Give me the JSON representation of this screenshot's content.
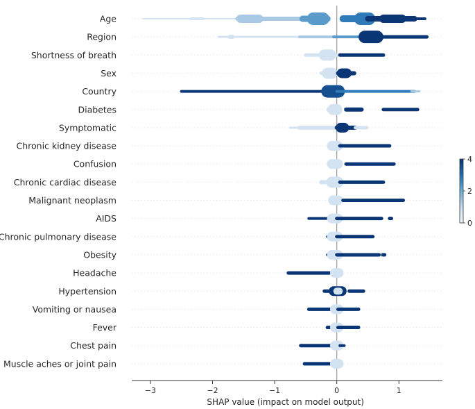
{
  "chart_data": {
    "type": "scatter",
    "subtype": "shap-beeswarm",
    "title": "",
    "xlabel": "SHAP value (impact on model output)",
    "ylabel": "",
    "xlim": [
      -3.3,
      1.7
    ],
    "x_ticks": [
      -3,
      -2,
      -1,
      0,
      1
    ],
    "x_tick_labels": [
      "−3",
      "−2",
      "−1",
      "0",
      "1"
    ],
    "grid": false,
    "colors": {
      "very_light": "#d3e3f1",
      "light": "#a9c9e4",
      "mid": "#5b9bcb",
      "midblue": "#2f7ab9",
      "dark": "#144f8f",
      "darkest": "#0b3675",
      "zero_line": "#999999",
      "axis": "#333333",
      "feature_guide": "#e6e6e6"
    },
    "colorbar": {
      "ticks": [
        0,
        2,
        4
      ],
      "tick_labels": [
        "0",
        "2",
        "4"
      ],
      "range": [
        0,
        4
      ],
      "colors": [
        "#f7fbff",
        "#c6dbef",
        "#6baed6",
        "#2171b5",
        "#08306b"
      ]
    },
    "features": [
      {
        "name": "Age",
        "segments": [
          {
            "x0": -3.12,
            "x1": -1.6,
            "w": 2,
            "c": "very_light"
          },
          {
            "x0": -2.35,
            "x1": -2.15,
            "w": 4,
            "c": "very_light"
          },
          {
            "x0": -1.6,
            "x1": -0.55,
            "w": 6,
            "c": "light"
          },
          {
            "x0": -1.55,
            "x1": -1.25,
            "w": 12,
            "c": "light"
          },
          {
            "x0": -0.55,
            "x1": -0.15,
            "w": 9,
            "c": "mid"
          },
          {
            "x0": -0.38,
            "x1": -0.22,
            "w": 18,
            "c": "mid"
          },
          {
            "x0": 0.1,
            "x1": 0.4,
            "w": 10,
            "c": "midblue"
          },
          {
            "x0": 0.38,
            "x1": 0.52,
            "w": 18,
            "c": "midblue"
          },
          {
            "x0": 0.5,
            "x1": 1.25,
            "w": 8,
            "c": "darkest"
          },
          {
            "x0": 0.75,
            "x1": 1.05,
            "w": 12,
            "c": "darkest"
          },
          {
            "x0": 1.25,
            "x1": 1.42,
            "w": 4,
            "c": "darkest"
          }
        ]
      },
      {
        "name": "Region",
        "segments": [
          {
            "x0": -1.9,
            "x1": -0.6,
            "w": 3,
            "c": "very_light"
          },
          {
            "x0": -1.72,
            "x1": -1.68,
            "w": 6,
            "c": "very_light"
          },
          {
            "x0": -0.6,
            "x1": 0.0,
            "w": 4,
            "c": "light"
          },
          {
            "x0": -0.05,
            "x1": 0.5,
            "w": 4,
            "c": "mid"
          },
          {
            "x0": 0.45,
            "x1": 0.65,
            "w": 18,
            "c": "darkest"
          },
          {
            "x0": 0.6,
            "x1": 1.45,
            "w": 5,
            "c": "darkest"
          }
        ]
      },
      {
        "name": "Shortness of breath",
        "segments": [
          {
            "x0": -0.5,
            "x1": 0.0,
            "w": 5,
            "c": "very_light"
          },
          {
            "x0": -0.2,
            "x1": -0.1,
            "w": 16,
            "c": "very_light"
          },
          {
            "x0": 0.05,
            "x1": 0.75,
            "w": 5,
            "c": "darkest"
          }
        ]
      },
      {
        "name": "Sex",
        "segments": [
          {
            "x0": -0.25,
            "x1": 0.0,
            "w": 5,
            "c": "very_light"
          },
          {
            "x0": -0.15,
            "x1": -0.08,
            "w": 16,
            "c": "very_light"
          },
          {
            "x0": 0.02,
            "x1": 0.28,
            "w": 6,
            "c": "darkest"
          },
          {
            "x0": 0.08,
            "x1": 0.16,
            "w": 14,
            "c": "darkest"
          }
        ]
      },
      {
        "name": "Country",
        "segments": [
          {
            "x0": -2.5,
            "x1": -0.15,
            "w": 4,
            "c": "darkest"
          },
          {
            "x0": -0.15,
            "x1": 0.03,
            "w": 18,
            "c": "dark"
          },
          {
            "x0": 0.0,
            "x1": 1.25,
            "w": 4,
            "c": "midblue"
          },
          {
            "x0": 1.2,
            "x1": 1.33,
            "w": 3,
            "c": "light"
          }
        ]
      },
      {
        "name": "Diabetes",
        "segments": [
          {
            "x0": -0.12,
            "x1": 0.02,
            "w": 8,
            "c": "very_light"
          },
          {
            "x0": -0.06,
            "x1": 0.0,
            "w": 16,
            "c": "very_light"
          },
          {
            "x0": 0.15,
            "x1": 0.4,
            "w": 6,
            "c": "darkest"
          },
          {
            "x0": 0.75,
            "x1": 1.3,
            "w": 5,
            "c": "darkest"
          }
        ]
      },
      {
        "name": "Symptomatic",
        "segments": [
          {
            "x0": -0.75,
            "x1": -0.5,
            "w": 3,
            "c": "very_light"
          },
          {
            "x0": -0.6,
            "x1": 0.0,
            "w": 6,
            "c": "very_light"
          },
          {
            "x0": 0.0,
            "x1": 0.3,
            "w": 6,
            "c": "darkest"
          },
          {
            "x0": 0.06,
            "x1": 0.12,
            "w": 14,
            "c": "darkest"
          },
          {
            "x0": 0.3,
            "x1": 0.48,
            "w": 5,
            "c": "very_light"
          }
        ]
      },
      {
        "name": "Chronic kidney disease",
        "segments": [
          {
            "x0": -0.08,
            "x1": 0.02,
            "w": 14,
            "c": "very_light"
          },
          {
            "x0": 0.05,
            "x1": 0.85,
            "w": 5,
            "c": "darkest"
          }
        ]
      },
      {
        "name": "Confusion",
        "segments": [
          {
            "x0": -0.08,
            "x1": 0.02,
            "w": 14,
            "c": "very_light"
          },
          {
            "x0": 0.15,
            "x1": 0.92,
            "w": 5,
            "c": "darkest"
          }
        ]
      },
      {
        "name": "Chronic cardiac disease",
        "segments": [
          {
            "x0": -0.25,
            "x1": 0.02,
            "w": 6,
            "c": "very_light"
          },
          {
            "x0": -0.08,
            "x1": 0.02,
            "w": 16,
            "c": "very_light"
          },
          {
            "x0": 0.05,
            "x1": 0.75,
            "w": 5,
            "c": "darkest"
          }
        ]
      },
      {
        "name": "Malignant neoplasm",
        "segments": [
          {
            "x0": -0.06,
            "x1": 0.02,
            "w": 14,
            "c": "very_light"
          },
          {
            "x0": 0.1,
            "x1": 1.07,
            "w": 5,
            "c": "darkest"
          }
        ]
      },
      {
        "name": "AIDS",
        "segments": [
          {
            "x0": -0.45,
            "x1": -0.05,
            "w": 4,
            "c": "darkest"
          },
          {
            "x0": -0.08,
            "x1": 0.02,
            "w": 14,
            "c": "very_light"
          },
          {
            "x0": 0.0,
            "x1": 0.72,
            "w": 5,
            "c": "darkest"
          },
          {
            "x0": 0.85,
            "x1": 0.88,
            "w": 5,
            "c": "darkest"
          }
        ]
      },
      {
        "name": "Chronic pulmonary disease",
        "segments": [
          {
            "x0": -0.15,
            "x1": -0.05,
            "w": 4,
            "c": "darkest"
          },
          {
            "x0": -0.08,
            "x1": 0.02,
            "w": 14,
            "c": "very_light"
          },
          {
            "x0": 0.0,
            "x1": 0.58,
            "w": 5,
            "c": "darkest"
          }
        ]
      },
      {
        "name": "Obesity",
        "segments": [
          {
            "x0": -0.15,
            "x1": -0.05,
            "w": 4,
            "c": "darkest"
          },
          {
            "x0": -0.08,
            "x1": 0.02,
            "w": 14,
            "c": "very_light"
          },
          {
            "x0": 0.0,
            "x1": 0.68,
            "w": 5,
            "c": "darkest"
          },
          {
            "x0": 0.74,
            "x1": 0.77,
            "w": 5,
            "c": "darkest"
          }
        ]
      },
      {
        "name": "Headache",
        "segments": [
          {
            "x0": -0.78,
            "x1": -0.12,
            "w": 5,
            "c": "darkest"
          },
          {
            "x0": -0.03,
            "x1": 0.03,
            "w": 14,
            "c": "very_light"
          }
        ]
      },
      {
        "name": "Hypertension",
        "segments": [
          {
            "x0": -0.2,
            "x1": 0.02,
            "w": 5,
            "c": "darkest"
          },
          {
            "x0": -0.05,
            "x1": 0.08,
            "w": 14,
            "c": "darkest"
          },
          {
            "x0": 0.0,
            "x1": 0.04,
            "w": 10,
            "c": "very_light"
          },
          {
            "x0": 0.2,
            "x1": 0.43,
            "w": 5,
            "c": "darkest"
          }
        ]
      },
      {
        "name": "Vomiting or nausea",
        "segments": [
          {
            "x0": -0.45,
            "x1": -0.02,
            "w": 5,
            "c": "darkest"
          },
          {
            "x0": -0.03,
            "x1": 0.03,
            "w": 14,
            "c": "very_light"
          },
          {
            "x0": 0.02,
            "x1": 0.35,
            "w": 5,
            "c": "darkest"
          }
        ]
      },
      {
        "name": "Fever",
        "segments": [
          {
            "x0": -0.15,
            "x1": -0.03,
            "w": 5,
            "c": "darkest"
          },
          {
            "x0": -0.03,
            "x1": 0.03,
            "w": 14,
            "c": "very_light"
          },
          {
            "x0": 0.02,
            "x1": 0.35,
            "w": 5,
            "c": "darkest"
          }
        ]
      },
      {
        "name": "Chest pain",
        "segments": [
          {
            "x0": -0.58,
            "x1": -0.05,
            "w": 5,
            "c": "darkest"
          },
          {
            "x0": -0.03,
            "x1": 0.03,
            "w": 14,
            "c": "very_light"
          },
          {
            "x0": 0.05,
            "x1": 0.12,
            "w": 4,
            "c": "darkest"
          }
        ]
      },
      {
        "name": "Muscle aches or joint pain",
        "segments": [
          {
            "x0": -0.52,
            "x1": -0.05,
            "w": 5,
            "c": "darkest"
          },
          {
            "x0": -0.03,
            "x1": 0.03,
            "w": 14,
            "c": "very_light"
          }
        ]
      }
    ]
  }
}
